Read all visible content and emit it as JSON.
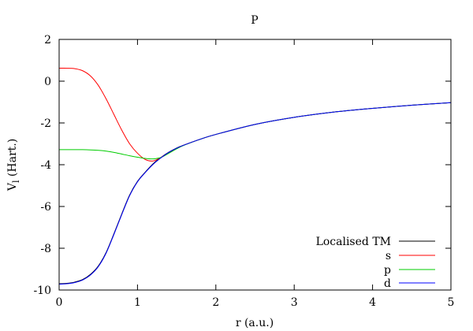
{
  "chart_data": {
    "type": "line",
    "title": "P",
    "xlabel": "r (a.u.)",
    "ylabel_main": "V",
    "ylabel_sub": "l",
    "ylabel_unit": " (Hart.)",
    "xlim": [
      0,
      5
    ],
    "ylim": [
      -10,
      2
    ],
    "xticks": [
      0,
      1,
      2,
      3,
      4,
      5
    ],
    "yticks": [
      -10,
      -8,
      -6,
      -4,
      -2,
      0,
      2
    ],
    "grid": false,
    "legend_position": "bottom-right",
    "series": [
      {
        "name": "Localised TM",
        "color": "#000000",
        "x": [
          0,
          0.1,
          0.2,
          0.3,
          0.4,
          0.5,
          0.6,
          0.7,
          0.8,
          0.9,
          1.0,
          1.1,
          1.2,
          1.3,
          1.4,
          1.5,
          1.6,
          1.8,
          2.0,
          2.5,
          3.0,
          3.5,
          4.0,
          4.5,
          5.0
        ],
        "y": [
          -9.7,
          -9.68,
          -9.62,
          -9.5,
          -9.25,
          -8.85,
          -8.2,
          -7.3,
          -6.35,
          -5.45,
          -4.8,
          -4.35,
          -3.95,
          -3.65,
          -3.4,
          -3.2,
          -3.05,
          -2.78,
          -2.55,
          -2.07,
          -1.73,
          -1.48,
          -1.3,
          -1.15,
          -1.03
        ]
      },
      {
        "name": "s",
        "color": "#ff0000",
        "x": [
          0,
          0.1,
          0.2,
          0.3,
          0.4,
          0.5,
          0.6,
          0.7,
          0.8,
          0.9,
          1.0,
          1.1,
          1.2,
          1.3,
          1.4,
          1.5,
          1.6,
          1.8,
          2.0,
          2.5,
          3.0,
          3.5,
          4.0,
          4.5,
          5.0
        ],
        "y": [
          0.62,
          0.62,
          0.6,
          0.5,
          0.25,
          -0.2,
          -0.85,
          -1.6,
          -2.35,
          -3.0,
          -3.45,
          -3.75,
          -3.82,
          -3.65,
          -3.42,
          -3.22,
          -3.05,
          -2.78,
          -2.55,
          -2.07,
          -1.73,
          -1.48,
          -1.3,
          -1.15,
          -1.03
        ]
      },
      {
        "name": "p",
        "color": "#00cc00",
        "x": [
          0,
          0.1,
          0.2,
          0.3,
          0.4,
          0.5,
          0.6,
          0.7,
          0.8,
          0.9,
          1.0,
          1.1,
          1.2,
          1.3,
          1.4,
          1.5,
          1.6,
          1.8,
          2.0,
          2.5,
          3.0,
          3.5,
          4.0,
          4.5,
          5.0
        ],
        "y": [
          -3.28,
          -3.28,
          -3.28,
          -3.28,
          -3.29,
          -3.31,
          -3.35,
          -3.41,
          -3.49,
          -3.57,
          -3.64,
          -3.7,
          -3.72,
          -3.65,
          -3.45,
          -3.24,
          -3.06,
          -2.78,
          -2.55,
          -2.07,
          -1.73,
          -1.48,
          -1.3,
          -1.15,
          -1.03
        ]
      },
      {
        "name": "d",
        "color": "#0000ff",
        "x": [
          0,
          0.1,
          0.2,
          0.3,
          0.4,
          0.5,
          0.6,
          0.7,
          0.8,
          0.9,
          1.0,
          1.1,
          1.2,
          1.3,
          1.4,
          1.5,
          1.6,
          1.8,
          2.0,
          2.5,
          3.0,
          3.5,
          4.0,
          4.5,
          5.0
        ],
        "y": [
          -9.72,
          -9.7,
          -9.64,
          -9.52,
          -9.28,
          -8.88,
          -8.23,
          -7.33,
          -6.38,
          -5.48,
          -4.82,
          -4.37,
          -3.98,
          -3.67,
          -3.41,
          -3.21,
          -3.05,
          -2.78,
          -2.55,
          -2.07,
          -1.73,
          -1.48,
          -1.3,
          -1.15,
          -1.03
        ]
      }
    ]
  }
}
